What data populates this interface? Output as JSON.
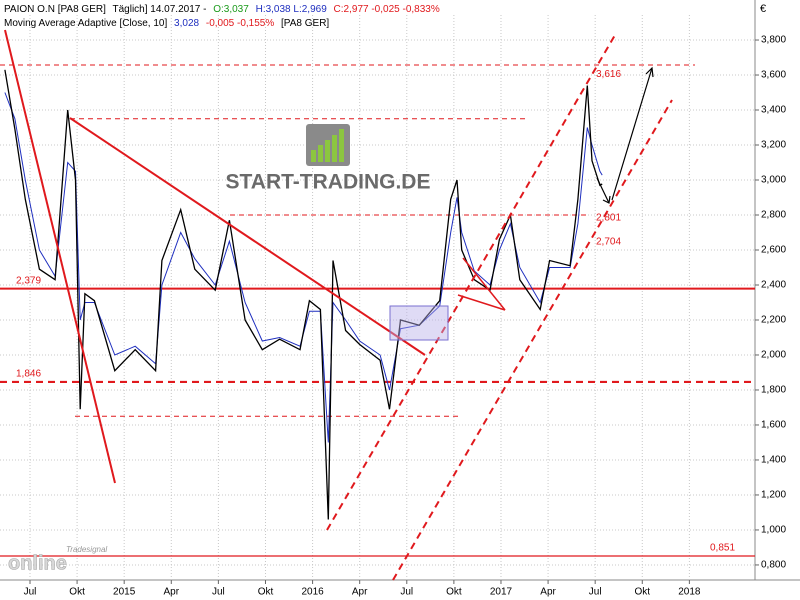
{
  "chart_data": {
    "type": "line",
    "currency": "€",
    "header1": [
      "Täglich] 14.07.2017 -",
      "O:3,037",
      "H:3,038 L:2,969",
      "C:2,977 -0,025 -0,833%"
    ],
    "header2": [
      "3,028",
      "-0,005 -0,155%",
      "[PA8 GER]"
    ],
    "watermark": "START-TRADING.DE",
    "brand": "Tradesignal",
    "brand2": "online",
    "x": [
      -1.6,
      -0.96,
      -0.3,
      0.6,
      1.6,
      2.4,
      2.9,
      3.2,
      3.5,
      4.1,
      5.4,
      6.7,
      8.0,
      8.4,
      9.6,
      10.5,
      11.8,
      12.7,
      13.7,
      14.8,
      15.9,
      17.2,
      17.8,
      18.5,
      19.0,
      19.3,
      20.1,
      21.0,
      22.3,
      22.9,
      23.6,
      24.8,
      26.1,
      26.8,
      27.2,
      27.5,
      28.3,
      29.3,
      29.9,
      30.6,
      31.2,
      32.5,
      33.1,
      34.4,
      34.9,
      35.5,
      35.8,
      36.3,
      36.45
    ],
    "series": [
      {
        "name": "PAION O.N [PA8 GER]",
        "color": "#000000",
        "values": [
          3.63,
          3.29,
          2.89,
          2.49,
          2.43,
          3.4,
          3.0,
          1.69,
          2.35,
          2.31,
          1.91,
          2.03,
          1.91,
          2.54,
          2.83,
          2.49,
          2.37,
          2.77,
          2.2,
          2.03,
          2.09,
          2.03,
          2.31,
          2.26,
          1.06,
          2.54,
          2.14,
          2.06,
          1.97,
          1.69,
          2.2,
          2.17,
          2.31,
          2.89,
          3.0,
          2.6,
          2.43,
          2.37,
          2.66,
          2.8,
          2.43,
          2.26,
          2.54,
          2.51,
          2.89,
          3.54,
          3.11,
          2.97,
          2.977
        ]
      },
      {
        "name": "Moving Average Adaptive [Close, 10]",
        "color": "#1f2fbf",
        "values": [
          3.5,
          3.35,
          3.0,
          2.6,
          2.45,
          3.1,
          3.05,
          2.2,
          2.3,
          2.3,
          2.0,
          2.05,
          1.95,
          2.4,
          2.7,
          2.55,
          2.4,
          2.65,
          2.3,
          2.08,
          2.1,
          2.05,
          2.25,
          2.25,
          1.5,
          2.3,
          2.2,
          2.08,
          2.0,
          1.8,
          2.15,
          2.17,
          2.28,
          2.7,
          2.9,
          2.7,
          2.48,
          2.4,
          2.6,
          2.75,
          2.5,
          2.3,
          2.5,
          2.5,
          2.75,
          3.3,
          3.2,
          3.05,
          3.028
        ]
      }
    ],
    "xlim": [
      -1.91,
      46.18
    ],
    "xticks": [
      {
        "value": 0,
        "label": "Jul"
      },
      {
        "value": 3,
        "label": "Okt"
      },
      {
        "value": 6,
        "label": "2015"
      },
      {
        "value": 9,
        "label": "Apr"
      },
      {
        "value": 12,
        "label": "Jul"
      },
      {
        "value": 15,
        "label": "Okt"
      },
      {
        "value": 18,
        "label": "2016"
      },
      {
        "value": 21,
        "label": "Apr"
      },
      {
        "value": 24,
        "label": "Jul"
      },
      {
        "value": 27,
        "label": "Okt"
      },
      {
        "value": 30,
        "label": "2017"
      },
      {
        "value": 33,
        "label": "Apr"
      },
      {
        "value": 36,
        "label": "Jul"
      },
      {
        "value": 39,
        "label": "Okt"
      },
      {
        "value": 42,
        "label": "2018"
      }
    ],
    "ylim": [
      0.714,
      3.943
    ],
    "yticks": [
      {
        "value": 0.8,
        "label": "0,800"
      },
      {
        "value": 1.0,
        "label": "1,000"
      },
      {
        "value": 1.2,
        "label": "1,200"
      },
      {
        "value": 1.4,
        "label": "1,400"
      },
      {
        "value": 1.6,
        "label": "1,600"
      },
      {
        "value": 1.8,
        "label": "1,800"
      },
      {
        "value": 2.0,
        "label": "2,000"
      },
      {
        "value": 2.2,
        "label": "2,200"
      },
      {
        "value": 2.4,
        "label": "2,400"
      },
      {
        "value": 2.6,
        "label": "2,600"
      },
      {
        "value": 2.8,
        "label": "2,800"
      },
      {
        "value": 3.0,
        "label": "3,000"
      },
      {
        "value": 3.2,
        "label": "3,200"
      },
      {
        "value": 3.4,
        "label": "3,400"
      },
      {
        "value": 3.6,
        "label": "3,600"
      },
      {
        "value": 3.8,
        "label": "3,800"
      }
    ],
    "grid": true,
    "levels": [
      {
        "value": 2.379,
        "label": "2,379",
        "style": "solid-thick"
      },
      {
        "value": 1.846,
        "label": "1,846",
        "style": "dash-thick"
      },
      {
        "value": 0.851,
        "label": "0,851",
        "style": "solid-thin"
      },
      {
        "value": 3.657,
        "style": "dash-thin"
      },
      {
        "value": 3.35,
        "style": "dash-thin"
      },
      {
        "value": 2.8,
        "style": "dash-thin"
      },
      {
        "value": 1.65,
        "style": "dash-thin"
      }
    ],
    "annotations": [
      {
        "value": 3.616,
        "label": "3,616"
      },
      {
        "value": 2.801,
        "label": "2,801"
      },
      {
        "value": 2.704,
        "label": "2,704"
      }
    ]
  }
}
